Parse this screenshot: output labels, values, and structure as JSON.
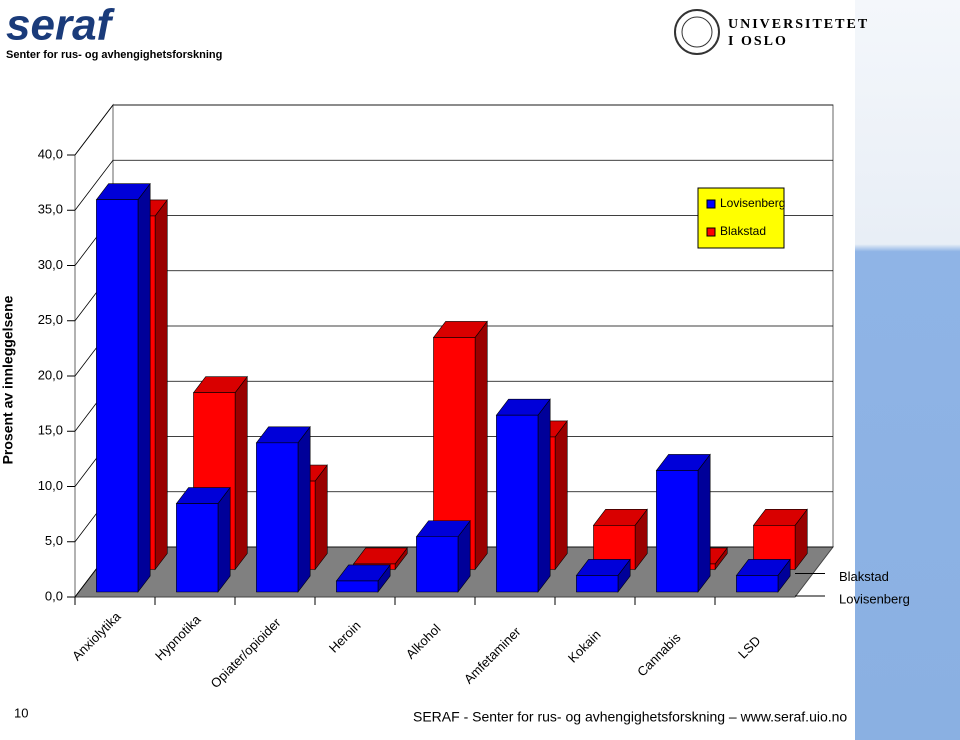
{
  "header": {
    "logo": "seraf",
    "logo_subtitle": "Senter for rus- og avhengighetsforskning",
    "university_line1": "UNIVERSITETET",
    "university_line2": "I OSLO"
  },
  "chart_data": {
    "type": "bar3d",
    "y_label": "Prosent av innleggelsene",
    "categories": [
      "Anxiolytika",
      "Hypnotika",
      "Opiater/opioider",
      "Heroin",
      "Alkohol",
      "Amfetaminer",
      "Kokain",
      "Cannabis",
      "LSD"
    ],
    "series": [
      {
        "name": "Lovisenberg",
        "color": "#0000ff",
        "values": [
          35.5,
          8,
          13.5,
          1,
          5,
          16,
          1.5,
          11,
          1.5
        ]
      },
      {
        "name": "Blakstad",
        "color": "#ff0000",
        "values": [
          32,
          16,
          8,
          0.5,
          21,
          12,
          4,
          0.5,
          4
        ]
      }
    ],
    "ylim": [
      0,
      40
    ],
    "yticks": [
      {
        "value": 0,
        "label": "0,0"
      },
      {
        "value": 5,
        "label": "5,0"
      },
      {
        "value": 10,
        "label": "10,0"
      },
      {
        "value": 15,
        "label": "15,0"
      },
      {
        "value": 20,
        "label": "20,0"
      },
      {
        "value": 25,
        "label": "25,0"
      },
      {
        "value": 30,
        "label": "30,0"
      },
      {
        "value": 35,
        "label": "35,0"
      },
      {
        "value": 40,
        "label": "40,0"
      }
    ],
    "grid": true,
    "legend": "upper right"
  },
  "footer": {
    "page_number": "10",
    "text": "SERAF - Senter for rus- og avhengighetsforskning – www.seraf.uio.no"
  }
}
